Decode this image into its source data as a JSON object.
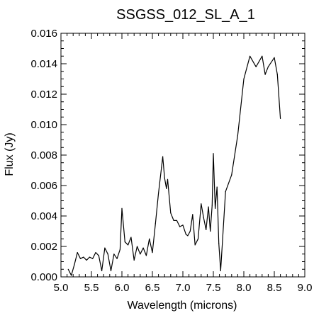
{
  "chart_data": {
    "type": "line",
    "title": "SSGSS_012_SL_A_1",
    "xlabel": "Wavelength (microns)",
    "ylabel": "Flux (Jy)",
    "xlim": [
      5.0,
      9.0
    ],
    "ylim": [
      0.0,
      0.016
    ],
    "xticks": [
      "5.0",
      "5.5",
      "6.0",
      "6.5",
      "7.0",
      "7.5",
      "8.0",
      "8.5",
      "9.0"
    ],
    "yticks": [
      "0.000",
      "0.002",
      "0.004",
      "0.006",
      "0.008",
      "0.010",
      "0.012",
      "0.014",
      "0.016"
    ],
    "grid": false,
    "line_color": "#000000",
    "series": [
      {
        "x": [
          5.12,
          5.17,
          5.22,
          5.27,
          5.32,
          5.37,
          5.42,
          5.47,
          5.52,
          5.57,
          5.62,
          5.67,
          5.72,
          5.77,
          5.82,
          5.87,
          5.92,
          5.97,
          6.0,
          6.05,
          6.1,
          6.15,
          6.2,
          6.25,
          6.3,
          6.35,
          6.4,
          6.45,
          6.5,
          6.55,
          6.6,
          6.65,
          6.67,
          6.7,
          6.73,
          6.75,
          6.8,
          6.85,
          6.9,
          6.95,
          7.0,
          7.05,
          7.08,
          7.12,
          7.16,
          7.2,
          7.25,
          7.3,
          7.34,
          7.38,
          7.42,
          7.45,
          7.48,
          7.5,
          7.53,
          7.56,
          7.59,
          7.62,
          7.7,
          7.8,
          7.9,
          8.0,
          8.1,
          8.2,
          8.3,
          8.35,
          8.4,
          8.5,
          8.55,
          8.6
        ],
        "y": [
          0.0005,
          0.0001,
          0.0008,
          0.0016,
          0.0012,
          0.0013,
          0.0011,
          0.0013,
          0.0012,
          0.0016,
          0.0014,
          0.0004,
          0.0019,
          0.0015,
          0.0004,
          0.0015,
          0.0012,
          0.0018,
          0.0045,
          0.0023,
          0.0021,
          0.0026,
          0.0011,
          0.002,
          0.0015,
          0.0019,
          0.0014,
          0.0025,
          0.0016,
          0.0035,
          0.0055,
          0.0072,
          0.0079,
          0.0065,
          0.0058,
          0.0064,
          0.0042,
          0.0037,
          0.0037,
          0.0033,
          0.0034,
          0.0028,
          0.0027,
          0.003,
          0.0041,
          0.0021,
          0.0025,
          0.0048,
          0.0039,
          0.0031,
          0.0046,
          0.003,
          0.0047,
          0.0081,
          0.0045,
          0.0059,
          0.0022,
          0.0004,
          0.0056,
          0.0067,
          0.0093,
          0.013,
          0.0145,
          0.0138,
          0.0145,
          0.0133,
          0.0138,
          0.0144,
          0.0133,
          0.0104
        ]
      }
    ]
  }
}
